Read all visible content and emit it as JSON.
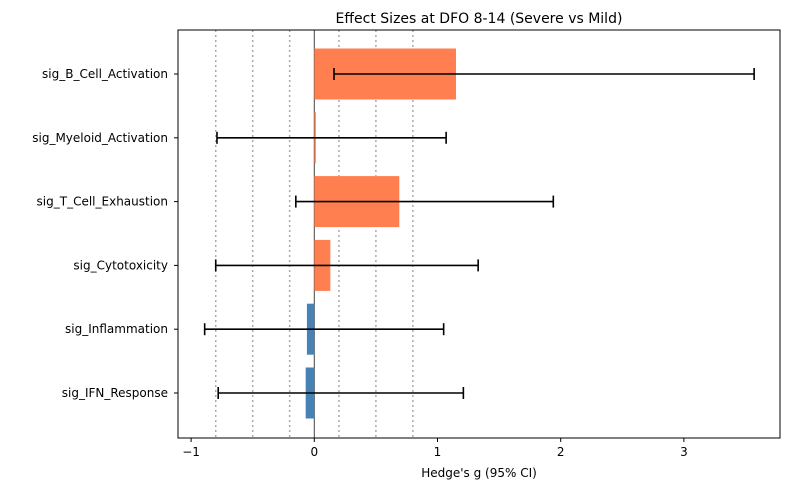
{
  "chart_data": {
    "type": "bar",
    "orientation": "horizontal",
    "title": "Effect Sizes at DFO 8-14 (Severe vs Mild)",
    "xlabel": "Hedge's g (95% CI)",
    "ylabel": "",
    "xlim": [
      -1.1,
      3.8
    ],
    "xticks": [
      -1,
      0,
      1,
      2,
      3
    ],
    "xtick_labels": [
      "−1",
      "0",
      "1",
      "2",
      "3"
    ],
    "reference_lines": [
      -0.8,
      -0.5,
      -0.2,
      0.2,
      0.5,
      0.8
    ],
    "zero_line": 0,
    "grid": false,
    "categories": [
      "sig_B_Cell_Activation",
      "sig_Myeloid_Activation",
      "sig_T_Cell_Exhaustion",
      "sig_Cytotoxicity",
      "sig_Inflammation",
      "sig_IFN_Response"
    ],
    "values": [
      1.15,
      0.01,
      0.69,
      0.13,
      -0.06,
      -0.07
    ],
    "ci_low": [
      0.16,
      -0.79,
      -0.15,
      -0.8,
      -0.89,
      -0.78
    ],
    "ci_high": [
      3.57,
      1.07,
      1.94,
      1.33,
      1.05,
      1.21
    ],
    "colors": {
      "positive": "#ff7f50",
      "negative": "#4682b4",
      "errorbar": "#000000",
      "reference": "#aaaaaa",
      "zero": "#444444"
    }
  }
}
